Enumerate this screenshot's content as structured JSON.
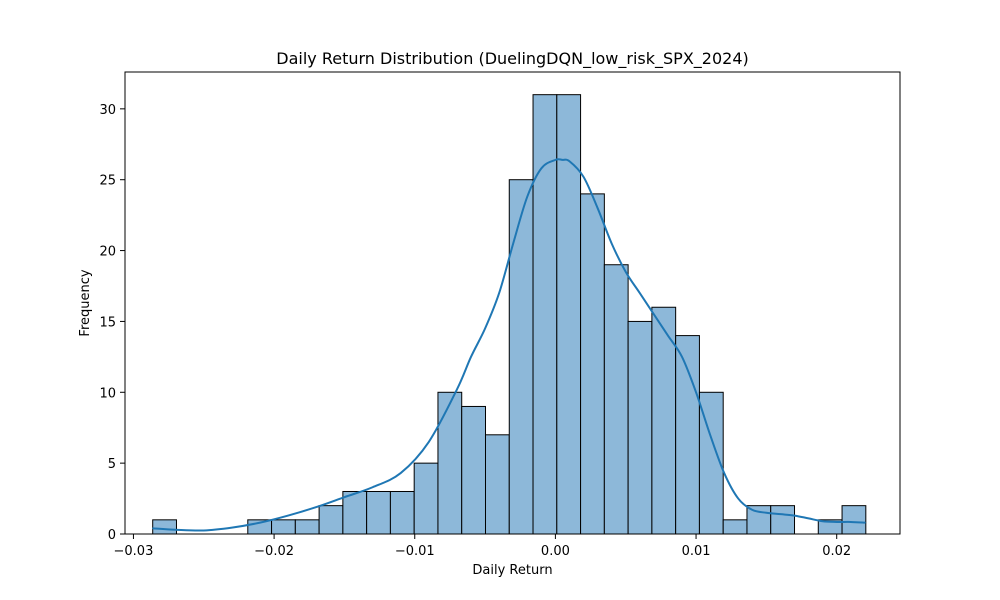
{
  "chart_data": {
    "type": "bar",
    "subtype": "histogram",
    "title": "Daily Return Distribution (DuelingDQN_low_risk_SPX_2024)",
    "xlabel": "Daily Return",
    "ylabel": "Frequency",
    "xlim": [
      -0.0306,
      0.0245
    ],
    "ylim": [
      0,
      32.6
    ],
    "x_ticks": [
      {
        "value": -0.03,
        "label": "−0.03"
      },
      {
        "value": -0.02,
        "label": "−0.02"
      },
      {
        "value": -0.01,
        "label": "−0.01"
      },
      {
        "value": 0.0,
        "label": "0.00"
      },
      {
        "value": 0.01,
        "label": "0.01"
      },
      {
        "value": 0.02,
        "label": "0.02"
      }
    ],
    "y_ticks": [
      0,
      5,
      10,
      15,
      20,
      25,
      30
    ],
    "bin_start": -0.02863,
    "bin_width": 0.00169,
    "counts": [
      1,
      0,
      0,
      0,
      1,
      1,
      1,
      2,
      3,
      3,
      3,
      5,
      10,
      9,
      7,
      25,
      31,
      31,
      24,
      19,
      15,
      16,
      14,
      10,
      1,
      2,
      2,
      0,
      1,
      2
    ],
    "kde": {
      "x": [
        -0.0286,
        -0.027,
        -0.025,
        -0.023,
        -0.021,
        -0.019,
        -0.017,
        -0.015,
        -0.013,
        -0.011,
        -0.009,
        -0.007,
        -0.006,
        -0.005,
        -0.004,
        -0.003,
        -0.002,
        -0.001,
        0.0,
        0.0005,
        0.001,
        0.002,
        0.003,
        0.004,
        0.005,
        0.006,
        0.007,
        0.008,
        0.009,
        0.01,
        0.011,
        0.012,
        0.013,
        0.014,
        0.015,
        0.016,
        0.017,
        0.018,
        0.019,
        0.02,
        0.021,
        0.022
      ],
      "y": [
        0.4,
        0.3,
        0.25,
        0.45,
        0.8,
        1.3,
        1.9,
        2.6,
        3.3,
        4.3,
        6.5,
        10.2,
        12.5,
        14.5,
        17.0,
        20.5,
        23.8,
        25.8,
        26.4,
        26.4,
        26.3,
        25.2,
        23.0,
        20.5,
        18.5,
        17.0,
        15.5,
        14.0,
        12.5,
        10.0,
        7.0,
        4.3,
        2.5,
        1.7,
        1.5,
        1.4,
        1.3,
        1.1,
        0.9,
        0.85,
        0.85,
        0.8
      ]
    },
    "colors": {
      "bar_fill": "#8db8d9",
      "bar_edge": "#000000",
      "kde_line": "#1f77b4"
    },
    "grid": false,
    "legend": "none"
  }
}
